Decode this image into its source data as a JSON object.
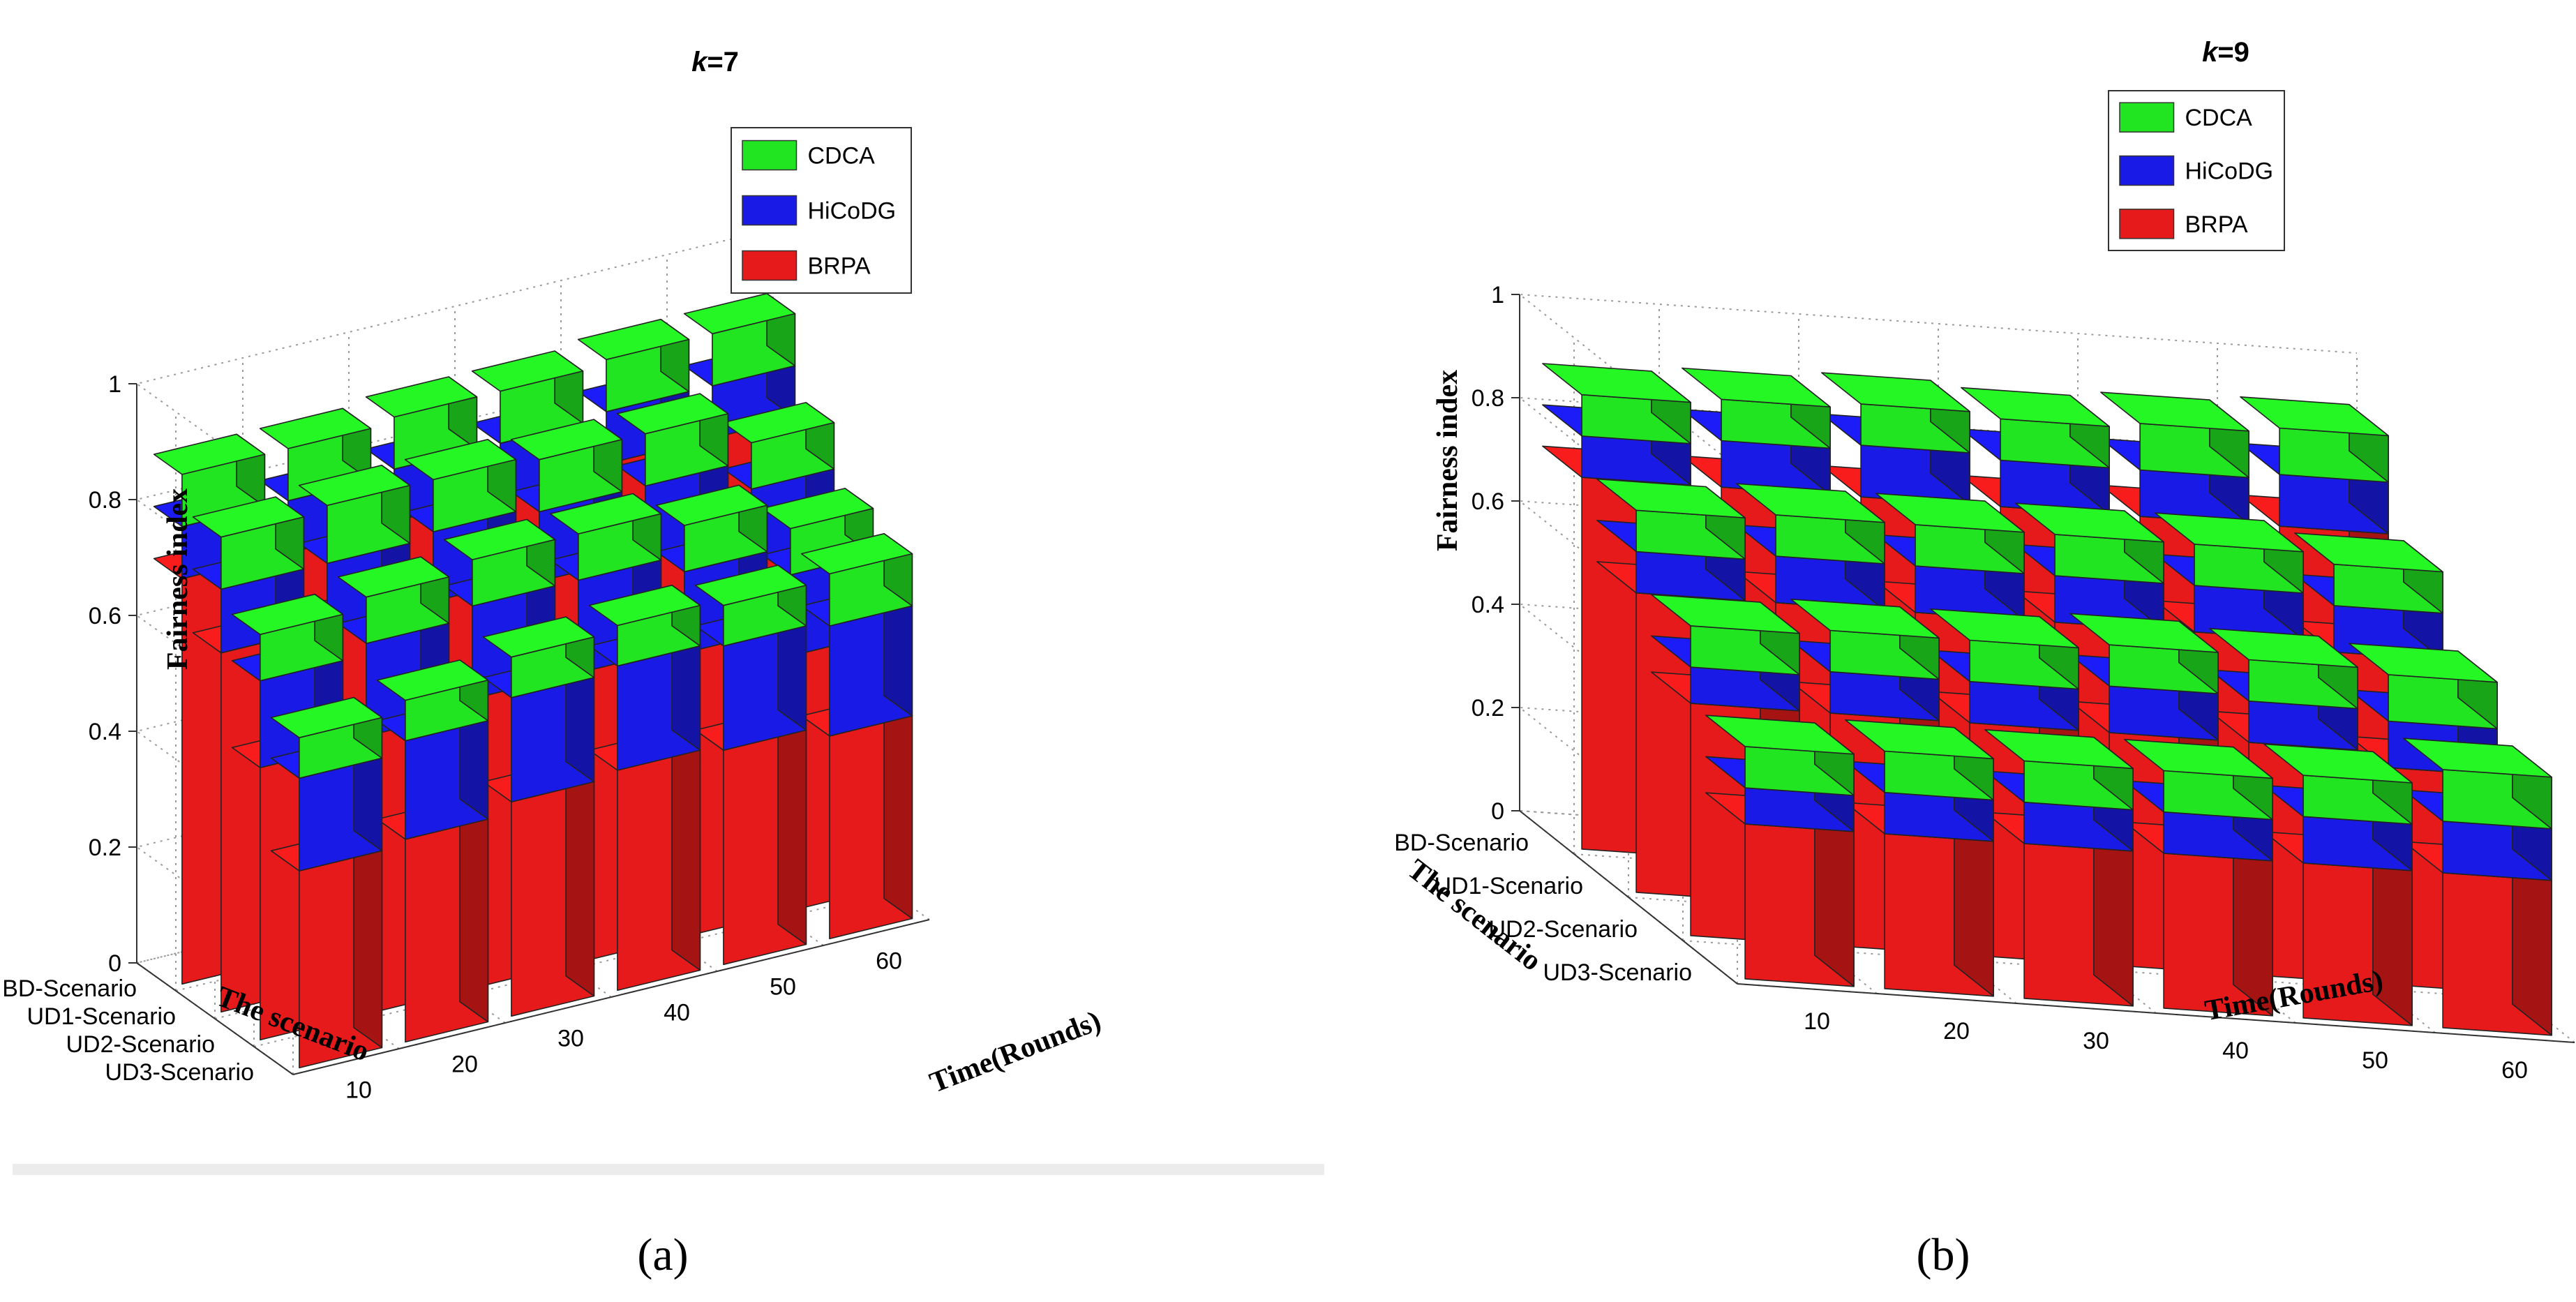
{
  "chart_data": [
    {
      "type": "bar3d",
      "panel_label": "(a)",
      "title": "k=7",
      "title_parts": {
        "italic": "k",
        "rest": "=7"
      },
      "ylabel": "Fairness index",
      "xlabel": "Time(Rounds)",
      "rowlabel": "The scenario",
      "zlim": [
        0,
        1
      ],
      "z_ticks": [
        "0",
        "0.2",
        "0.4",
        "0.6",
        "0.8",
        "1"
      ],
      "x": [
        "10",
        "20",
        "30",
        "40",
        "50",
        "60"
      ],
      "rows": [
        "BD-Scenario",
        "UD1-Scenario",
        "UD2-Scenario",
        "UD3-Scenario"
      ],
      "legend": [
        "CDCA",
        "HiCoDG",
        "BRPA"
      ],
      "colors": {
        "CDCA": "#22e522",
        "HiCoDG": "#1a1ae6",
        "BRPA": "#e61a1a"
      },
      "series": [
        {
          "name": "BRPA",
          "values": [
            [
              0.7,
              0.7,
              0.71,
              0.71,
              0.72,
              0.72
            ],
            [
              0.62,
              0.62,
              0.62,
              0.61,
              0.61,
              0.56
            ],
            [
              0.47,
              0.48,
              0.5,
              0.5,
              0.49,
              0.44
            ],
            [
              0.34,
              0.35,
              0.37,
              0.38,
              0.37,
              0.35
            ]
          ]
        },
        {
          "name": "HiCoDG",
          "values": [
            [
              0.79,
              0.79,
              0.8,
              0.8,
              0.81,
              0.81
            ],
            [
              0.73,
              0.73,
              0.74,
              0.73,
              0.73,
              0.68
            ],
            [
              0.62,
              0.64,
              0.66,
              0.66,
              0.63,
              0.58
            ],
            [
              0.5,
              0.52,
              0.55,
              0.56,
              0.55,
              0.54
            ]
          ]
        },
        {
          "name": "CDCA",
          "values": [
            [
              0.88,
              0.88,
              0.89,
              0.89,
              0.9,
              0.9
            ],
            [
              0.82,
              0.83,
              0.83,
              0.82,
              0.82,
              0.76
            ],
            [
              0.7,
              0.72,
              0.74,
              0.74,
              0.71,
              0.66
            ],
            [
              0.57,
              0.59,
              0.62,
              0.63,
              0.62,
              0.63
            ]
          ]
        }
      ]
    },
    {
      "type": "bar3d",
      "panel_label": "(b)",
      "title": "k=9",
      "title_parts": {
        "italic": "k",
        "rest": "=9"
      },
      "ylabel": "Fairness index",
      "xlabel": "Time(Rounds)",
      "rowlabel": "The scenario",
      "zlim": [
        0,
        1
      ],
      "z_ticks": [
        "0",
        "0.2",
        "0.4",
        "0.6",
        "0.8",
        "1"
      ],
      "x": [
        "10",
        "20",
        "30",
        "40",
        "50",
        "60"
      ],
      "rows": [
        "BD-Scenario",
        "UD1-Scenario",
        "UD2-Scenario",
        "UD3-Scenario"
      ],
      "legend": [
        "CDCA",
        "HiCoDG",
        "BRPA"
      ],
      "colors": {
        "CDCA": "#22e522",
        "HiCoDG": "#1a1ae6",
        "BRPA": "#e61a1a"
      },
      "series": [
        {
          "name": "BRPA",
          "values": [
            [
              0.72,
              0.72,
              0.72,
              0.72,
              0.72,
              0.72
            ],
            [
              0.58,
              0.58,
              0.58,
              0.58,
              0.58,
              0.56
            ],
            [
              0.45,
              0.45,
              0.45,
              0.45,
              0.45,
              0.42
            ],
            [
              0.3,
              0.3,
              0.3,
              0.3,
              0.3,
              0.3
            ]
          ]
        },
        {
          "name": "HiCoDG",
          "values": [
            [
              0.8,
              0.81,
              0.82,
              0.81,
              0.81,
              0.82
            ],
            [
              0.66,
              0.67,
              0.67,
              0.67,
              0.67,
              0.65
            ],
            [
              0.52,
              0.53,
              0.53,
              0.54,
              0.53,
              0.51
            ],
            [
              0.37,
              0.38,
              0.38,
              0.38,
              0.39,
              0.4
            ]
          ]
        },
        {
          "name": "CDCA",
          "values": [
            [
              0.88,
              0.89,
              0.9,
              0.89,
              0.9,
              0.91
            ],
            [
              0.74,
              0.75,
              0.75,
              0.75,
              0.75,
              0.73
            ],
            [
              0.6,
              0.61,
              0.61,
              0.62,
              0.61,
              0.6
            ],
            [
              0.45,
              0.46,
              0.46,
              0.46,
              0.47,
              0.5
            ]
          ]
        }
      ]
    }
  ]
}
